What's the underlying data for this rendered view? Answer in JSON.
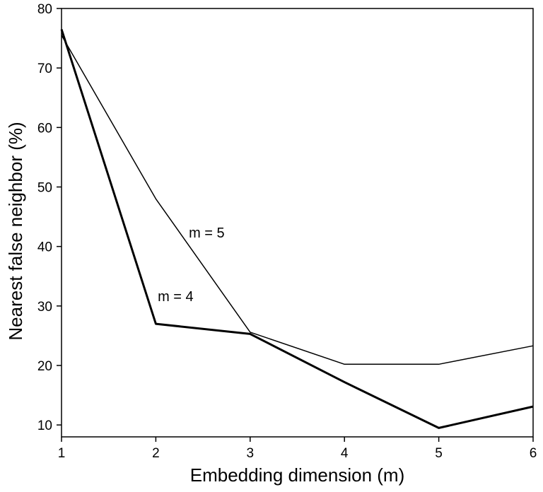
{
  "chart_data": {
    "type": "line",
    "title": "",
    "xlabel": "Embedding dimension (m)",
    "ylabel": "Nearest false neighbor (%)",
    "xlim": [
      1,
      6
    ],
    "ylim": [
      8,
      80
    ],
    "x": [
      1,
      2,
      3,
      4,
      5,
      6
    ],
    "xticks": [
      "1",
      "2",
      "3",
      "4",
      "5",
      "6"
    ],
    "yticks": [
      "10",
      "20",
      "30",
      "40",
      "50",
      "60",
      "70",
      "80"
    ],
    "grid": false,
    "series": [
      {
        "name": "m = 5",
        "values": [
          75.5,
          48,
          25.6,
          20.2,
          20.2,
          23.3
        ],
        "color": "#000000",
        "weight": "thin"
      },
      {
        "name": "m = 4",
        "values": [
          76.5,
          27,
          25.3,
          17.2,
          9.5,
          13.1
        ],
        "color": "#000000",
        "weight": "thick"
      }
    ],
    "annotations": [
      {
        "text": "m = 5",
        "x": 2.35,
        "y": 41.5
      },
      {
        "text": "m = 4",
        "x": 2.02,
        "y": 30.8
      }
    ]
  }
}
